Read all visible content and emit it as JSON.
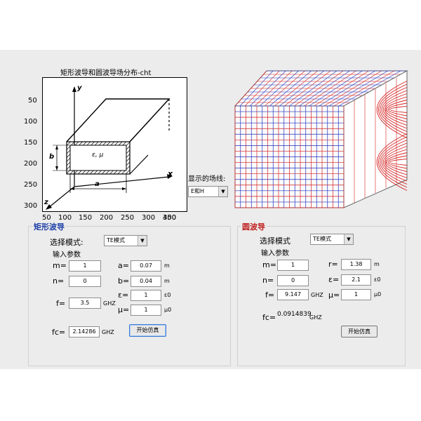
{
  "window": {
    "title": "矩形波导和圆波导场分布-cht"
  },
  "plot_left": {
    "x_ticks": [
      "50",
      "100",
      "150",
      "200",
      "250",
      "300",
      "350",
      "400"
    ],
    "y_ticks": [
      "50",
      "100",
      "150",
      "200",
      "250",
      "300"
    ],
    "labels": {
      "y": "y",
      "x": "x",
      "z": "z",
      "b": "b",
      "a": "a",
      "medium": "ε, μ"
    }
  },
  "field_display": {
    "label": "显示的场线:",
    "selected": "E和H"
  },
  "rect": {
    "title": "矩形波导",
    "mode_label": "选择模式:",
    "mode_value": "TE模式",
    "params_label": "输入参数",
    "m_label": "m=",
    "m_value": "1",
    "n_label": "n=",
    "n_value": "0",
    "a_label": "a=",
    "a_value": "0.07",
    "a_unit": "m",
    "b_label": "b=",
    "b_value": "0.04",
    "b_unit": "m",
    "eps_label": "ε=",
    "eps_value": "1",
    "eps_unit": "ε0",
    "mu_label": "μ=",
    "mu_value": "1",
    "mu_unit": "μ0",
    "f_label": "f=",
    "f_value": "3.5",
    "f_unit": "GHZ",
    "fc_label": "fc=",
    "fc_value": "2.14286",
    "fc_unit": "GHZ",
    "start_button": "开始仿真"
  },
  "circ": {
    "title": "圆波导",
    "mode_label": "选择模式",
    "mode_value": "TE模式",
    "params_label": "输入参数",
    "m_label": "m=",
    "m_value": "1",
    "n_label": "n=",
    "n_value": "0",
    "r_label": "r=",
    "r_value": "1.38",
    "r_unit": "m",
    "eps_label": "ε=",
    "eps_value": "2.1",
    "eps_unit": "ε0",
    "f_label": "f=",
    "f_value": "9.147",
    "f_unit": "GHZ",
    "mu_label": "μ=",
    "mu_value": "1",
    "mu_unit": "μ0",
    "fc_label": "fc=",
    "fc_value": "0.0914839",
    "fc_unit": "GHZ",
    "start_button": "开始仿真"
  },
  "colors": {
    "panel_title": "#1f3fa8",
    "field_e": "#d42020",
    "field_h": "#2030c0",
    "background": "#ececec"
  }
}
